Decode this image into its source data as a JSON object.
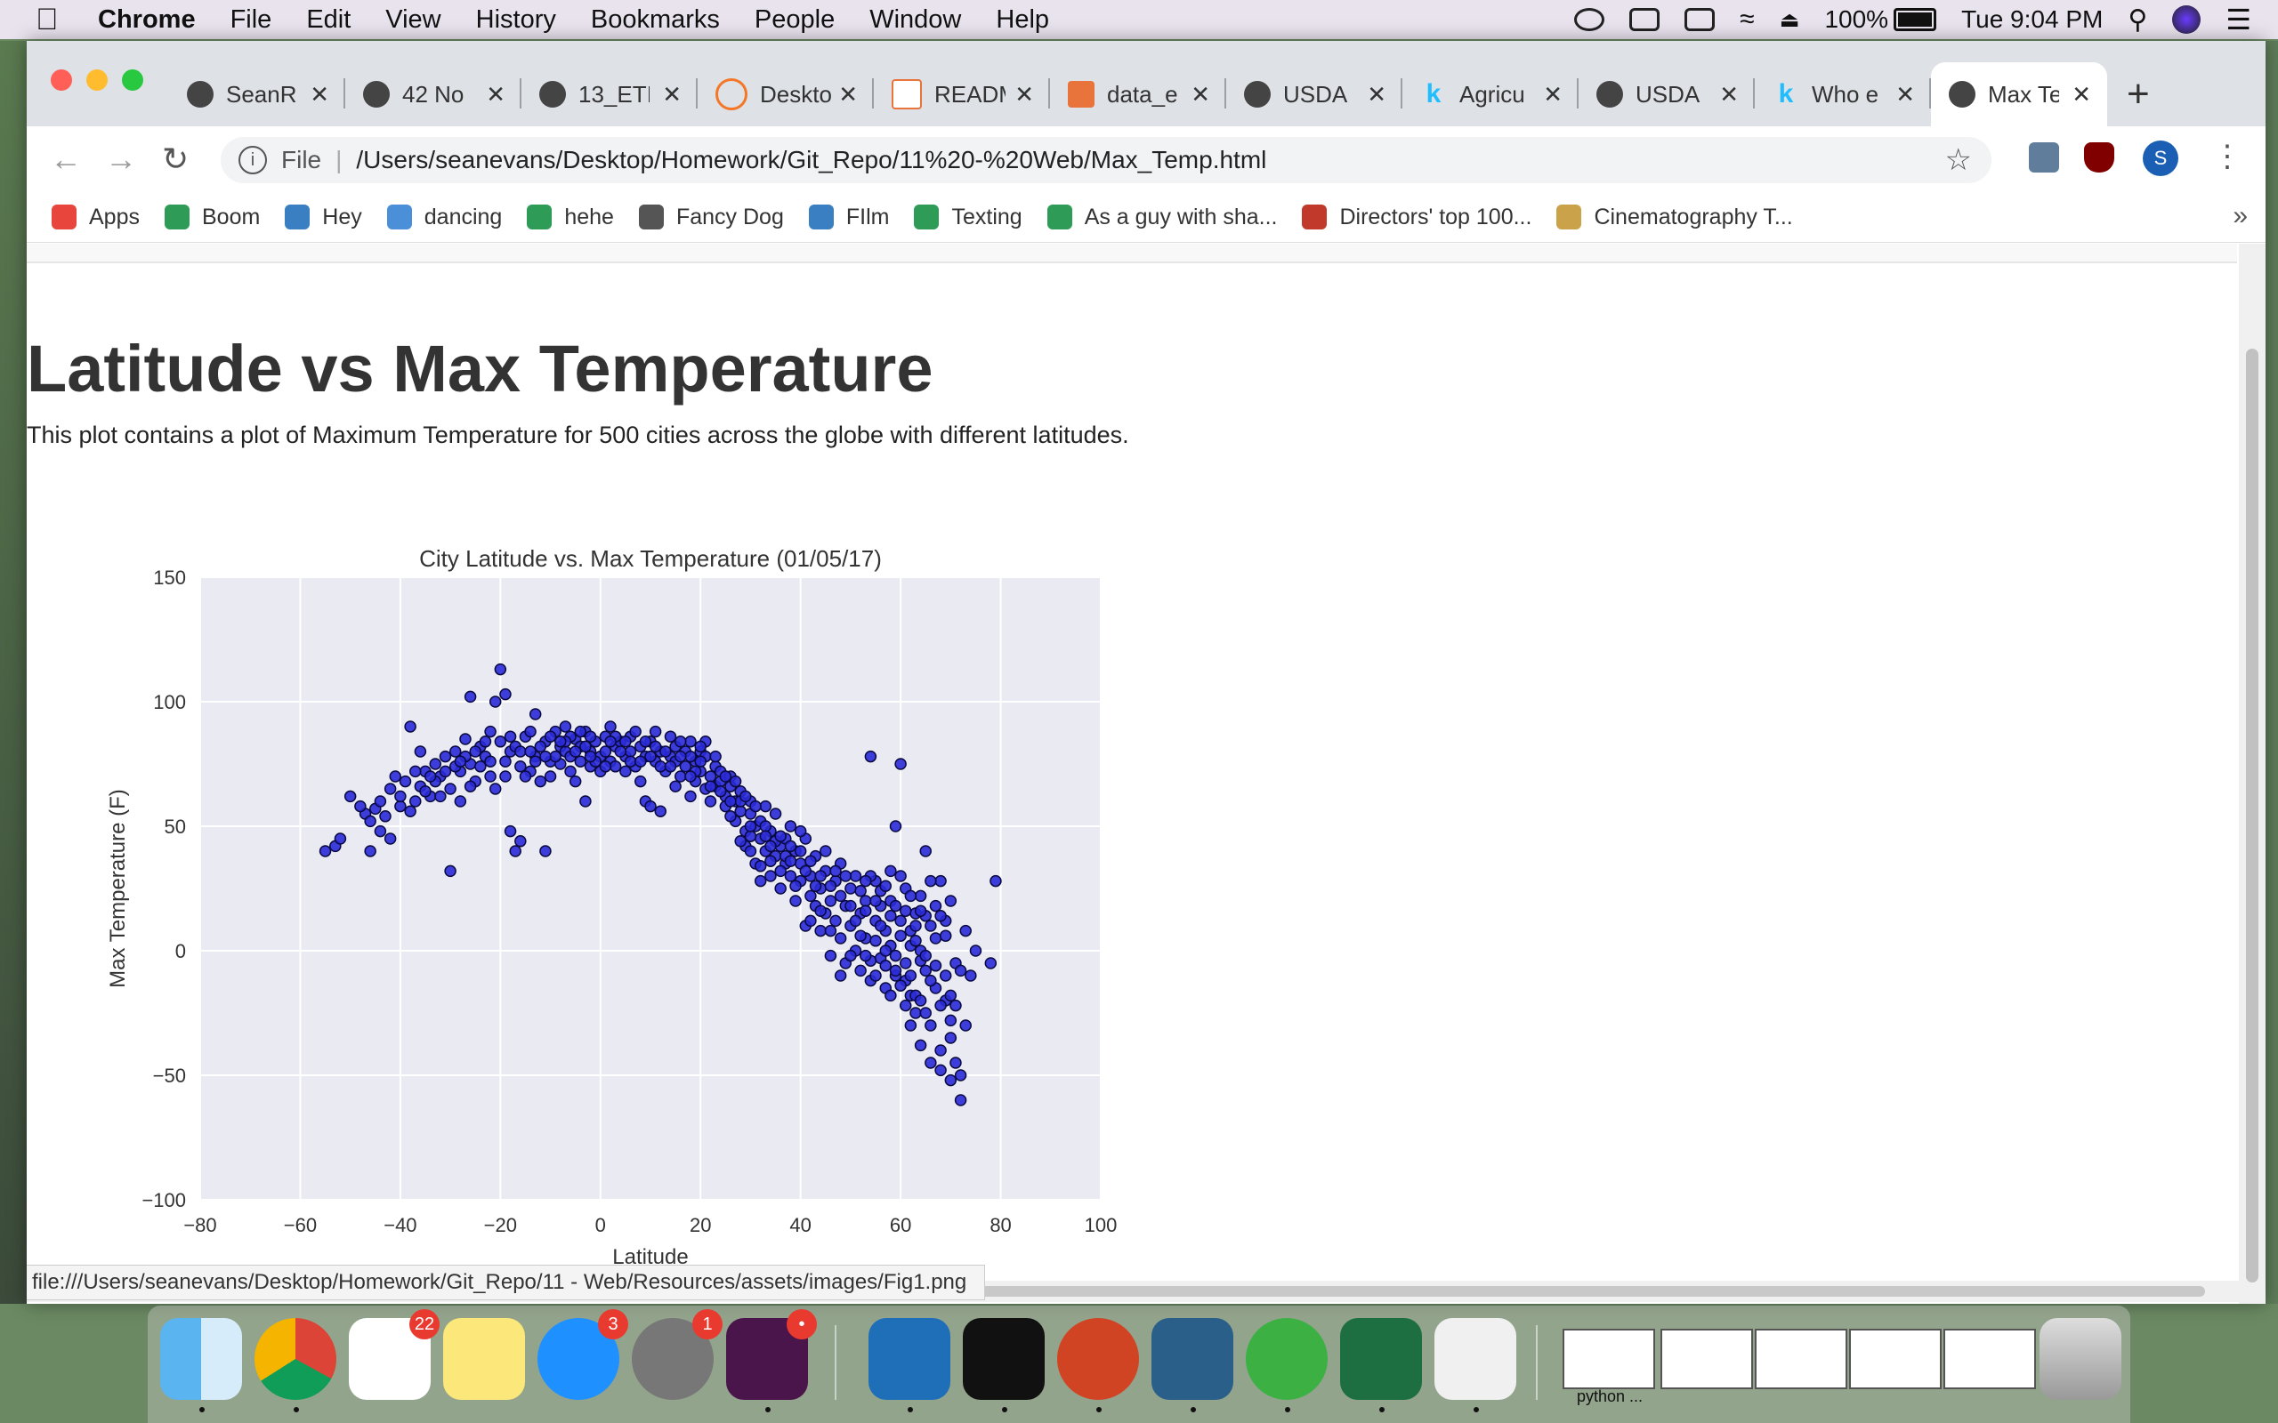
{
  "menubar": {
    "app": "Chrome",
    "items": [
      "File",
      "Edit",
      "View",
      "History",
      "Bookmarks",
      "People",
      "Window",
      "Help"
    ],
    "battery": "100%",
    "clock": "Tue 9:04 PM"
  },
  "tabs": [
    {
      "title": "SeanR",
      "icon": "github-icon"
    },
    {
      "title": "42 No",
      "icon": "globe-icon"
    },
    {
      "title": "13_ETI",
      "icon": "github-icon"
    },
    {
      "title": "Deskto",
      "icon": "jupyter-icon"
    },
    {
      "title": "READM",
      "icon": "file-icon"
    },
    {
      "title": "data_e",
      "icon": "book-icon"
    },
    {
      "title": "USDA",
      "icon": "globe-icon"
    },
    {
      "title": "Agricu",
      "icon": "kaggle-icon"
    },
    {
      "title": "USDA",
      "icon": "globe-icon"
    },
    {
      "title": "Who e",
      "icon": "kaggle-icon"
    },
    {
      "title": "Max Te",
      "icon": "globe-icon",
      "active": true
    }
  ],
  "omnibox": {
    "scheme": "File",
    "url": "/Users/seanevans/Desktop/Homework/Git_Repo/11%20-%20Web/Max_Temp.html"
  },
  "profile_initial": "S",
  "bookmarks": [
    {
      "label": "Apps",
      "color": "#e8453c"
    },
    {
      "label": "Boom",
      "color": "#2e9b57"
    },
    {
      "label": "Hey",
      "color": "#3a7fc1"
    },
    {
      "label": "dancing",
      "color": "#4a8fd8"
    },
    {
      "label": "hehe",
      "color": "#2e9b57"
    },
    {
      "label": "Fancy Dog",
      "color": "#555555"
    },
    {
      "label": "FIlm",
      "color": "#3a7fc1"
    },
    {
      "label": "Texting",
      "color": "#2e9b57"
    },
    {
      "label": "As a guy with sha...",
      "color": "#2e9b57"
    },
    {
      "label": "Directors' top 100...",
      "color": "#c0392b"
    },
    {
      "label": "Cinematography T...",
      "color": "#c9a24a"
    }
  ],
  "bookmarks_more": "»",
  "page": {
    "heading": "Latitude vs Max Temperature",
    "description": "This plot contains a plot of Maximum Temperature for 500 cities across the globe with different latitudes."
  },
  "status_url": "file:///Users/seanevans/Desktop/Homework/Git_Repo/11 - Web/Resources/assets/images/Fig1.png",
  "chart_data": {
    "type": "scatter",
    "title": "City Latitude vs. Max Temperature (01/05/17)",
    "xlabel": "Latitude",
    "ylabel": "Max Temperature (F)",
    "xlim": [
      -80,
      100
    ],
    "ylim": [
      -100,
      150
    ],
    "xticks": [
      -80,
      -60,
      -40,
      -20,
      0,
      20,
      40,
      60,
      80,
      100
    ],
    "yticks": [
      -100,
      -50,
      0,
      50,
      100,
      150
    ],
    "grid": true,
    "colors": {
      "background": "#eaeaf2",
      "point": "#2a2ad8",
      "edge": "#0a0a40"
    },
    "points": [
      [
        -55,
        40
      ],
      [
        -53,
        42
      ],
      [
        -52,
        45
      ],
      [
        -47,
        55
      ],
      [
        -46,
        52
      ],
      [
        -46,
        40
      ],
      [
        -45,
        57
      ],
      [
        -44,
        48
      ],
      [
        -42,
        45
      ],
      [
        -42,
        65
      ],
      [
        -40,
        58
      ],
      [
        -39,
        68
      ],
      [
        -38,
        90
      ],
      [
        -37,
        60
      ],
      [
        -36,
        66
      ],
      [
        -35,
        72
      ],
      [
        -34,
        62
      ],
      [
        -33,
        75
      ],
      [
        -32,
        70
      ],
      [
        -31,
        78
      ],
      [
        -30,
        65
      ],
      [
        -30,
        32
      ],
      [
        -29,
        80
      ],
      [
        -28,
        72
      ],
      [
        -28,
        60
      ],
      [
        -27,
        85
      ],
      [
        -26,
        75
      ],
      [
        -26,
        102
      ],
      [
        -25,
        68
      ],
      [
        -24,
        82
      ],
      [
        -23,
        78
      ],
      [
        -22,
        88
      ],
      [
        -22,
        70
      ],
      [
        -21,
        65
      ],
      [
        -21,
        100
      ],
      [
        -20,
        84
      ],
      [
        -20,
        113
      ],
      [
        -19,
        76
      ],
      [
        -19,
        103
      ],
      [
        -18,
        80
      ],
      [
        -18,
        48
      ],
      [
        -17,
        82
      ],
      [
        -17,
        40
      ],
      [
        -16,
        44
      ],
      [
        -16,
        74
      ],
      [
        -15,
        86
      ],
      [
        -14,
        72
      ],
      [
        -14,
        88
      ],
      [
        -13,
        95
      ],
      [
        -13,
        78
      ],
      [
        -12,
        68
      ],
      [
        -11,
        84
      ],
      [
        -11,
        40
      ],
      [
        -10,
        76
      ],
      [
        -10,
        70
      ],
      [
        -9,
        88
      ],
      [
        -8,
        82
      ],
      [
        -8,
        75
      ],
      [
        -7,
        80
      ],
      [
        -7,
        90
      ],
      [
        -6,
        78
      ],
      [
        -6,
        72
      ],
      [
        -5,
        85
      ],
      [
        -5,
        68
      ],
      [
        -4,
        82
      ],
      [
        -4,
        76
      ],
      [
        -3,
        88
      ],
      [
        -3,
        60
      ],
      [
        -2,
        80
      ],
      [
        -2,
        74
      ],
      [
        -1,
        84
      ],
      [
        0,
        78
      ],
      [
        0,
        72
      ],
      [
        1,
        86
      ],
      [
        1,
        80
      ],
      [
        2,
        76
      ],
      [
        2,
        90
      ],
      [
        3,
        82
      ],
      [
        3,
        74
      ],
      [
        4,
        84
      ],
      [
        5,
        78
      ],
      [
        5,
        72
      ],
      [
        6,
        86
      ],
      [
        6,
        80
      ],
      [
        7,
        74
      ],
      [
        8,
        82
      ],
      [
        8,
        68
      ],
      [
        9,
        78
      ],
      [
        9,
        60
      ],
      [
        10,
        84
      ],
      [
        10,
        58
      ],
      [
        11,
        76
      ],
      [
        12,
        80
      ],
      [
        12,
        56
      ],
      [
        13,
        72
      ],
      [
        14,
        86
      ],
      [
        14,
        78
      ],
      [
        15,
        66
      ],
      [
        15,
        82
      ],
      [
        16,
        70
      ],
      [
        17,
        80
      ],
      [
        17,
        74
      ],
      [
        18,
        84
      ],
      [
        18,
        62
      ],
      [
        19,
        76
      ],
      [
        19,
        68
      ],
      [
        20,
        80
      ],
      [
        20,
        72
      ],
      [
        21,
        78
      ],
      [
        21,
        65
      ],
      [
        22,
        70
      ],
      [
        22,
        60
      ],
      [
        23,
        74
      ],
      [
        23,
        66
      ],
      [
        24,
        68
      ],
      [
        24,
        72
      ],
      [
        25,
        62
      ],
      [
        25,
        58
      ],
      [
        26,
        66
      ],
      [
        26,
        70
      ],
      [
        27,
        60
      ],
      [
        27,
        52
      ],
      [
        28,
        56
      ],
      [
        28,
        64
      ],
      [
        29,
        48
      ],
      [
        29,
        42
      ],
      [
        30,
        55
      ],
      [
        30,
        60
      ],
      [
        31,
        50
      ],
      [
        31,
        35
      ],
      [
        32,
        52
      ],
      [
        32,
        45
      ],
      [
        33,
        40
      ],
      [
        33,
        58
      ],
      [
        34,
        48
      ],
      [
        34,
        30
      ],
      [
        35,
        38
      ],
      [
        35,
        55
      ],
      [
        36,
        42
      ],
      [
        36,
        25
      ],
      [
        37,
        45
      ],
      [
        37,
        35
      ],
      [
        38,
        30
      ],
      [
        38,
        50
      ],
      [
        39,
        40
      ],
      [
        39,
        20
      ],
      [
        40,
        35
      ],
      [
        40,
        28
      ],
      [
        41,
        45
      ],
      [
        41,
        10
      ],
      [
        42,
        30
      ],
      [
        42,
        22
      ],
      [
        43,
        18
      ],
      [
        43,
        38
      ],
      [
        44,
        25
      ],
      [
        44,
        8
      ],
      [
        45,
        32
      ],
      [
        45,
        15
      ],
      [
        46,
        20
      ],
      [
        46,
        -2
      ],
      [
        47,
        28
      ],
      [
        47,
        12
      ],
      [
        48,
        35
      ],
      [
        48,
        5
      ],
      [
        49,
        18
      ],
      [
        49,
        -5
      ],
      [
        50,
        25
      ],
      [
        50,
        10
      ],
      [
        51,
        0
      ],
      [
        51,
        30
      ],
      [
        52,
        15
      ],
      [
        52,
        -8
      ],
      [
        53,
        20
      ],
      [
        53,
        5
      ],
      [
        54,
        78
      ],
      [
        54,
        -12
      ],
      [
        55,
        12
      ],
      [
        55,
        28
      ],
      [
        56,
        -3
      ],
      [
        56,
        18
      ],
      [
        57,
        8
      ],
      [
        57,
        -15
      ],
      [
        58,
        20
      ],
      [
        58,
        2
      ],
      [
        59,
        50
      ],
      [
        59,
        -10
      ],
      [
        60,
        12
      ],
      [
        60,
        75
      ],
      [
        61,
        -5
      ],
      [
        61,
        25
      ],
      [
        62,
        -18
      ],
      [
        62,
        8
      ],
      [
        63,
        15
      ],
      [
        63,
        -25
      ],
      [
        64,
        0
      ],
      [
        64,
        22
      ],
      [
        65,
        -8
      ],
      [
        65,
        40
      ],
      [
        66,
        10
      ],
      [
        66,
        -30
      ],
      [
        67,
        -15
      ],
      [
        67,
        5
      ],
      [
        68,
        28
      ],
      [
        68,
        -40
      ],
      [
        69,
        -20
      ],
      [
        69,
        12
      ],
      [
        70,
        -35
      ],
      [
        70,
        20
      ],
      [
        71,
        -45
      ],
      [
        71,
        -5
      ],
      [
        72,
        -50
      ],
      [
        72,
        -60
      ],
      [
        73,
        8
      ],
      [
        74,
        -10
      ],
      [
        75,
        0
      ],
      [
        78,
        -5
      ],
      [
        79,
        28
      ],
      [
        -50,
        62
      ],
      [
        -48,
        58
      ],
      [
        -41,
        70
      ],
      [
        -36,
        80
      ],
      [
        -33,
        68
      ],
      [
        -27,
        78
      ],
      [
        -24,
        74
      ],
      [
        -15,
        70
      ],
      [
        -12,
        82
      ],
      [
        -9,
        78
      ],
      [
        -6,
        86
      ],
      [
        -1,
        76
      ],
      [
        4,
        80
      ],
      [
        7,
        88
      ],
      [
        11,
        82
      ],
      [
        13,
        80
      ],
      [
        16,
        84
      ],
      [
        20,
        76
      ],
      [
        24,
        64
      ],
      [
        26,
        54
      ],
      [
        30,
        46
      ],
      [
        33,
        50
      ],
      [
        35,
        44
      ],
      [
        38,
        42
      ],
      [
        40,
        40
      ],
      [
        42,
        36
      ],
      [
        44,
        30
      ],
      [
        46,
        26
      ],
      [
        48,
        22
      ],
      [
        50,
        18
      ],
      [
        52,
        24
      ],
      [
        54,
        30
      ],
      [
        56,
        24
      ],
      [
        58,
        14
      ],
      [
        60,
        6
      ],
      [
        62,
        2
      ],
      [
        64,
        -4
      ],
      [
        66,
        -12
      ],
      [
        68,
        -22
      ],
      [
        70,
        -28
      ],
      [
        55,
        4
      ],
      [
        57,
        0
      ],
      [
        59,
        -8
      ],
      [
        61,
        -12
      ],
      [
        63,
        4
      ],
      [
        65,
        14
      ],
      [
        67,
        18
      ],
      [
        69,
        6
      ],
      [
        58,
        32
      ],
      [
        53,
        28
      ],
      [
        49,
        30
      ],
      [
        45,
        40
      ],
      [
        41,
        32
      ],
      [
        37,
        38
      ],
      [
        33,
        46
      ],
      [
        31,
        58
      ],
      [
        28,
        60
      ],
      [
        26,
        60
      ],
      [
        23,
        78
      ],
      [
        21,
        84
      ],
      [
        18,
        78
      ],
      [
        15,
        76
      ],
      [
        12,
        74
      ],
      [
        9,
        84
      ],
      [
        6,
        76
      ],
      [
        3,
        86
      ],
      [
        1,
        74
      ],
      [
        -2,
        86
      ],
      [
        -4,
        88
      ],
      [
        -7,
        84
      ],
      [
        -10,
        86
      ],
      [
        -13,
        76
      ],
      [
        -16,
        80
      ],
      [
        -19,
        70
      ],
      [
        -23,
        84
      ],
      [
        -26,
        66
      ],
      [
        -29,
        74
      ],
      [
        -32,
        62
      ],
      [
        -35,
        64
      ],
      [
        -38,
        56
      ],
      [
        60,
        30
      ],
      [
        62,
        22
      ],
      [
        64,
        16
      ],
      [
        66,
        28
      ],
      [
        68,
        14
      ],
      [
        70,
        -18
      ],
      [
        72,
        -8
      ],
      [
        46,
        8
      ],
      [
        48,
        -10
      ],
      [
        50,
        -2
      ],
      [
        52,
        6
      ],
      [
        54,
        -4
      ],
      [
        56,
        10
      ],
      [
        44,
        16
      ],
      [
        42,
        12
      ],
      [
        39,
        26
      ],
      [
        36,
        32
      ],
      [
        34,
        36
      ],
      [
        32,
        34
      ],
      [
        30,
        40
      ],
      [
        28,
        44
      ],
      [
        43,
        26
      ],
      [
        47,
        32
      ],
      [
        51,
        12
      ],
      [
        53,
        16
      ],
      [
        55,
        20
      ],
      [
        57,
        26
      ],
      [
        59,
        18
      ],
      [
        61,
        16
      ],
      [
        63,
        10
      ],
      [
        65,
        -2
      ],
      [
        67,
        -6
      ],
      [
        69,
        -10
      ],
      [
        71,
        -22
      ],
      [
        73,
        -30
      ],
      [
        62,
        -30
      ],
      [
        64,
        -38
      ],
      [
        66,
        -45
      ],
      [
        68,
        -48
      ],
      [
        70,
        -52
      ],
      [
        65,
        -25
      ],
      [
        63,
        -18
      ],
      [
        61,
        -22
      ],
      [
        59,
        -2
      ],
      [
        57,
        -6
      ],
      [
        55,
        -10
      ],
      [
        53,
        -2
      ],
      [
        58,
        -18
      ],
      [
        60,
        -14
      ],
      [
        62,
        -10
      ],
      [
        64,
        -20
      ],
      [
        40,
        48
      ],
      [
        38,
        36
      ],
      [
        36,
        46
      ],
      [
        34,
        42
      ],
      [
        32,
        28
      ],
      [
        30,
        50
      ],
      [
        -3,
        82
      ],
      [
        5,
        84
      ],
      [
        10,
        78
      ],
      [
        14,
        74
      ],
      [
        19,
        72
      ],
      [
        22,
        66
      ],
      [
        25,
        70
      ],
      [
        27,
        68
      ],
      [
        29,
        62
      ],
      [
        -44,
        60
      ],
      [
        -43,
        54
      ],
      [
        -40,
        62
      ],
      [
        -37,
        72
      ],
      [
        -34,
        70
      ],
      [
        -31,
        72
      ],
      [
        -28,
        76
      ],
      [
        -25,
        80
      ],
      [
        -22,
        76
      ],
      [
        -18,
        86
      ],
      [
        -14,
        80
      ],
      [
        -11,
        78
      ],
      [
        -8,
        84
      ],
      [
        -5,
        80
      ],
      [
        -2,
        78
      ],
      [
        2,
        84
      ],
      [
        8,
        76
      ],
      [
        11,
        88
      ],
      [
        16,
        78
      ],
      [
        18,
        70
      ],
      [
        20,
        82
      ]
    ]
  }
}
